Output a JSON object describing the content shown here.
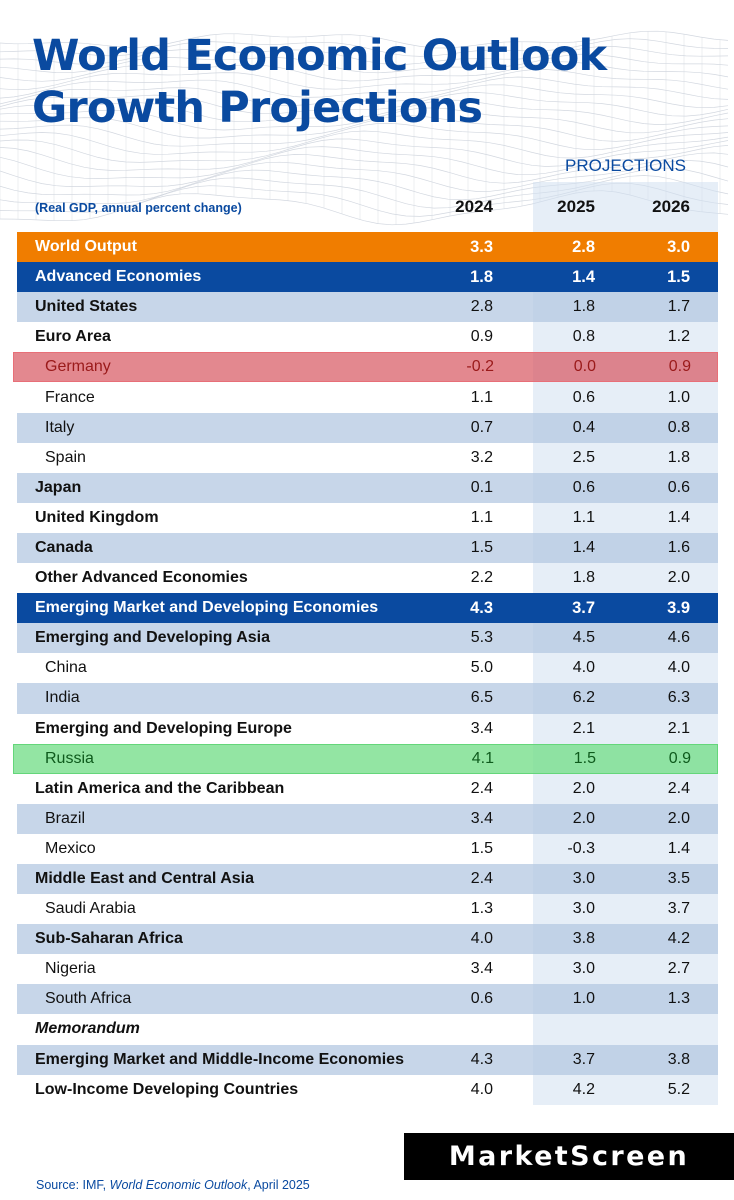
{
  "title": "World Economic Outlook Growth Projections",
  "header": {
    "projections_label": "PROJECTIONS",
    "note": "(Real GDP, annual percent change)",
    "years": [
      "2024",
      "2025",
      "2026"
    ]
  },
  "brand": "MarketScreen",
  "source": {
    "prefix": "Source: IMF, ",
    "publication": "World Economic Outlook",
    "suffix": ", April 2025"
  },
  "colors": {
    "title_blue": "#0a4aa0",
    "world_orange": "#f07d00",
    "highlight_red": "#d85a64",
    "highlight_green": "#78de8c"
  },
  "chart_data": {
    "type": "table",
    "title": "World Economic Outlook Growth Projections",
    "columns": [
      "2024",
      "2025",
      "2026"
    ],
    "rows": [
      {
        "label": "World Output",
        "style": "world",
        "values": [
          "3.3",
          "2.8",
          "3.0"
        ]
      },
      {
        "label": "Advanced Economies",
        "style": "blue",
        "values": [
          "1.8",
          "1.4",
          "1.5"
        ]
      },
      {
        "label": "United States",
        "style": "band",
        "values": [
          "2.8",
          "1.8",
          "1.7"
        ]
      },
      {
        "label": "Euro Area",
        "style": "white",
        "values": [
          "0.9",
          "0.8",
          "1.2"
        ]
      },
      {
        "label": "Germany",
        "style": "red",
        "sub": true,
        "values": [
          "-0.2",
          "0.0",
          "0.9"
        ]
      },
      {
        "label": "France",
        "style": "white",
        "sub": true,
        "values": [
          "1.1",
          "0.6",
          "1.0"
        ]
      },
      {
        "label": "Italy",
        "style": "band",
        "sub": true,
        "values": [
          "0.7",
          "0.4",
          "0.8"
        ]
      },
      {
        "label": "Spain",
        "style": "white",
        "sub": true,
        "values": [
          "3.2",
          "2.5",
          "1.8"
        ]
      },
      {
        "label": "Japan",
        "style": "band",
        "values": [
          "0.1",
          "0.6",
          "0.6"
        ]
      },
      {
        "label": "United Kingdom",
        "style": "white",
        "values": [
          "1.1",
          "1.1",
          "1.4"
        ]
      },
      {
        "label": "Canada",
        "style": "band",
        "values": [
          "1.5",
          "1.4",
          "1.6"
        ]
      },
      {
        "label": "Other Advanced Economies",
        "style": "white",
        "values": [
          "2.2",
          "1.8",
          "2.0"
        ]
      },
      {
        "label": "Emerging Market and Developing Economies",
        "style": "blue",
        "values": [
          "4.3",
          "3.7",
          "3.9"
        ]
      },
      {
        "label": "Emerging and Developing Asia",
        "style": "band",
        "values": [
          "5.3",
          "4.5",
          "4.6"
        ]
      },
      {
        "label": "China",
        "style": "white",
        "sub": true,
        "values": [
          "5.0",
          "4.0",
          "4.0"
        ]
      },
      {
        "label": "India",
        "style": "band",
        "sub": true,
        "values": [
          "6.5",
          "6.2",
          "6.3"
        ]
      },
      {
        "label": "Emerging and Developing Europe",
        "style": "white",
        "values": [
          "3.4",
          "2.1",
          "2.1"
        ]
      },
      {
        "label": "Russia",
        "style": "green",
        "sub": true,
        "values": [
          "4.1",
          "1.5",
          "0.9"
        ]
      },
      {
        "label": "Latin America and the Caribbean",
        "style": "white",
        "values": [
          "2.4",
          "2.0",
          "2.4"
        ]
      },
      {
        "label": "Brazil",
        "style": "band",
        "sub": true,
        "values": [
          "3.4",
          "2.0",
          "2.0"
        ]
      },
      {
        "label": "Mexico",
        "style": "white",
        "sub": true,
        "values": [
          "1.5",
          "-0.3",
          "1.4"
        ]
      },
      {
        "label": "Middle East and Central Asia",
        "style": "band",
        "values": [
          "2.4",
          "3.0",
          "3.5"
        ]
      },
      {
        "label": "Saudi Arabia",
        "style": "white",
        "sub": true,
        "values": [
          "1.3",
          "3.0",
          "3.7"
        ]
      },
      {
        "label": "Sub-Saharan Africa",
        "style": "band",
        "values": [
          "4.0",
          "3.8",
          "4.2"
        ]
      },
      {
        "label": "Nigeria",
        "style": "white",
        "sub": true,
        "values": [
          "3.4",
          "3.0",
          "2.7"
        ]
      },
      {
        "label": "South Africa",
        "style": "band",
        "sub": true,
        "values": [
          "0.6",
          "1.0",
          "1.3"
        ]
      },
      {
        "label": "Memorandum",
        "style": "white",
        "memo": true,
        "values": [
          "",
          "",
          ""
        ]
      },
      {
        "label": "Emerging Market and Middle-Income Economies",
        "style": "band",
        "values": [
          "4.3",
          "3.7",
          "3.8"
        ]
      },
      {
        "label": "Low-Income Developing Countries",
        "style": "white",
        "values": [
          "4.0",
          "4.2",
          "5.2"
        ]
      }
    ]
  }
}
